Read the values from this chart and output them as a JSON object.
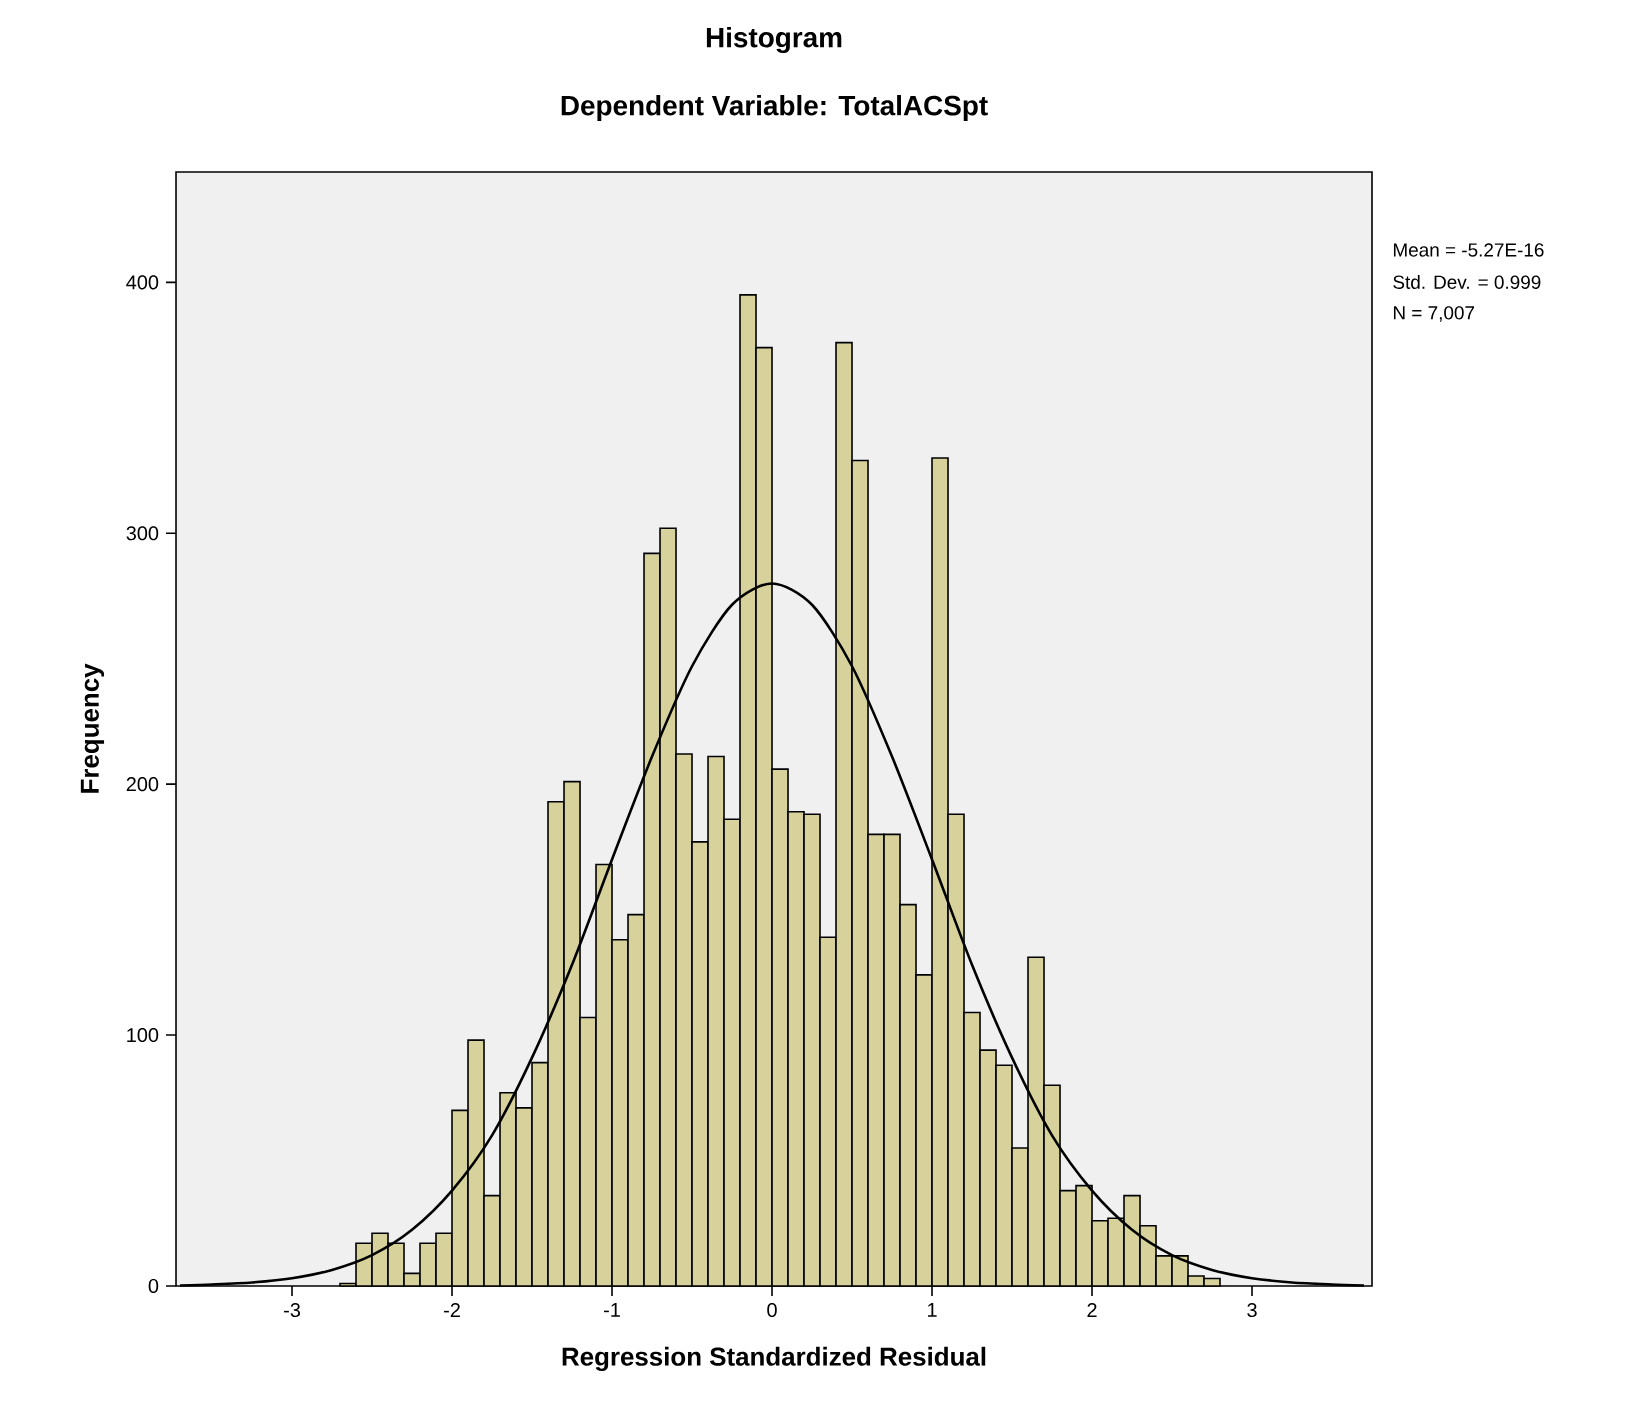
{
  "chart_data": {
    "type": "histogram",
    "title": "Histogram",
    "subtitle": "Dependent Variable: TotalACSpt",
    "xlabel": "Regression Standardized Residual",
    "ylabel": "Frequency",
    "annotations": [
      "Mean = -5.27E-16",
      "Std. Dev. = 0.999",
      "N = 7,007"
    ],
    "bins": [
      -2.7,
      -2.6,
      -2.5,
      -2.4,
      -2.3,
      -2.2,
      -2.1,
      -2.0,
      -1.9,
      -1.8,
      -1.7,
      -1.6,
      -1.5,
      -1.4,
      -1.3,
      -1.2,
      -1.1,
      -1.0,
      -0.9,
      -0.8,
      -0.7,
      -0.6,
      -0.5,
      -0.4,
      -0.3,
      -0.2,
      -0.1,
      0.0,
      0.1,
      0.2,
      0.3,
      0.4,
      0.5,
      0.6,
      0.7,
      0.8,
      0.9,
      1.0,
      1.1,
      1.2,
      1.3,
      1.4,
      1.5,
      1.6,
      1.7,
      1.8,
      1.9,
      2.0,
      2.1,
      2.2,
      2.3,
      2.4,
      2.5,
      2.6,
      2.7,
      2.8
    ],
    "values": [
      1,
      17,
      21,
      17,
      5,
      17,
      21,
      70,
      98,
      36,
      77,
      71,
      89,
      193,
      201,
      107,
      168,
      138,
      148,
      292,
      302,
      212,
      177,
      211,
      186,
      395,
      374,
      206,
      189,
      188,
      139,
      376,
      329,
      180,
      180,
      152,
      124,
      330,
      188,
      109,
      94,
      88,
      55,
      131,
      80,
      38,
      40,
      26,
      27,
      36,
      24,
      12,
      12,
      4,
      3
    ],
    "color": "#d7d29b",
    "series": [
      {
        "type": "line",
        "color": "#000000",
        "marker": "none",
        "x": [
          -3.7,
          -3.5,
          -3.25,
          -3.0,
          -2.75,
          -2.5,
          -2.25,
          -2.0,
          -1.75,
          -1.5,
          -1.25,
          -1.0,
          -0.75,
          -0.5,
          -0.25,
          0.0,
          0.25,
          0.5,
          0.75,
          1.0,
          1.25,
          1.5,
          1.75,
          2.0,
          2.25,
          2.5,
          2.75,
          3.0,
          3.25,
          3.5,
          3.7
        ],
        "values": [
          0.2,
          0.6,
          1.4,
          3.1,
          6.4,
          12.3,
          22.4,
          38,
          60,
          91,
          128,
          170,
          211,
          247,
          271.5,
          280,
          271.5,
          247,
          211,
          170,
          128,
          91,
          60,
          38,
          22.4,
          12.3,
          6.4,
          3.1,
          1.4,
          0.6,
          0.2
        ]
      }
    ],
    "xlim": [
      -3.725,
      3.75
    ],
    "ylim": [
      0,
      444
    ],
    "xticks": [
      -3,
      -2,
      -1,
      0,
      1,
      2,
      3
    ],
    "yticks": [
      0,
      100,
      200,
      300,
      400
    ]
  }
}
